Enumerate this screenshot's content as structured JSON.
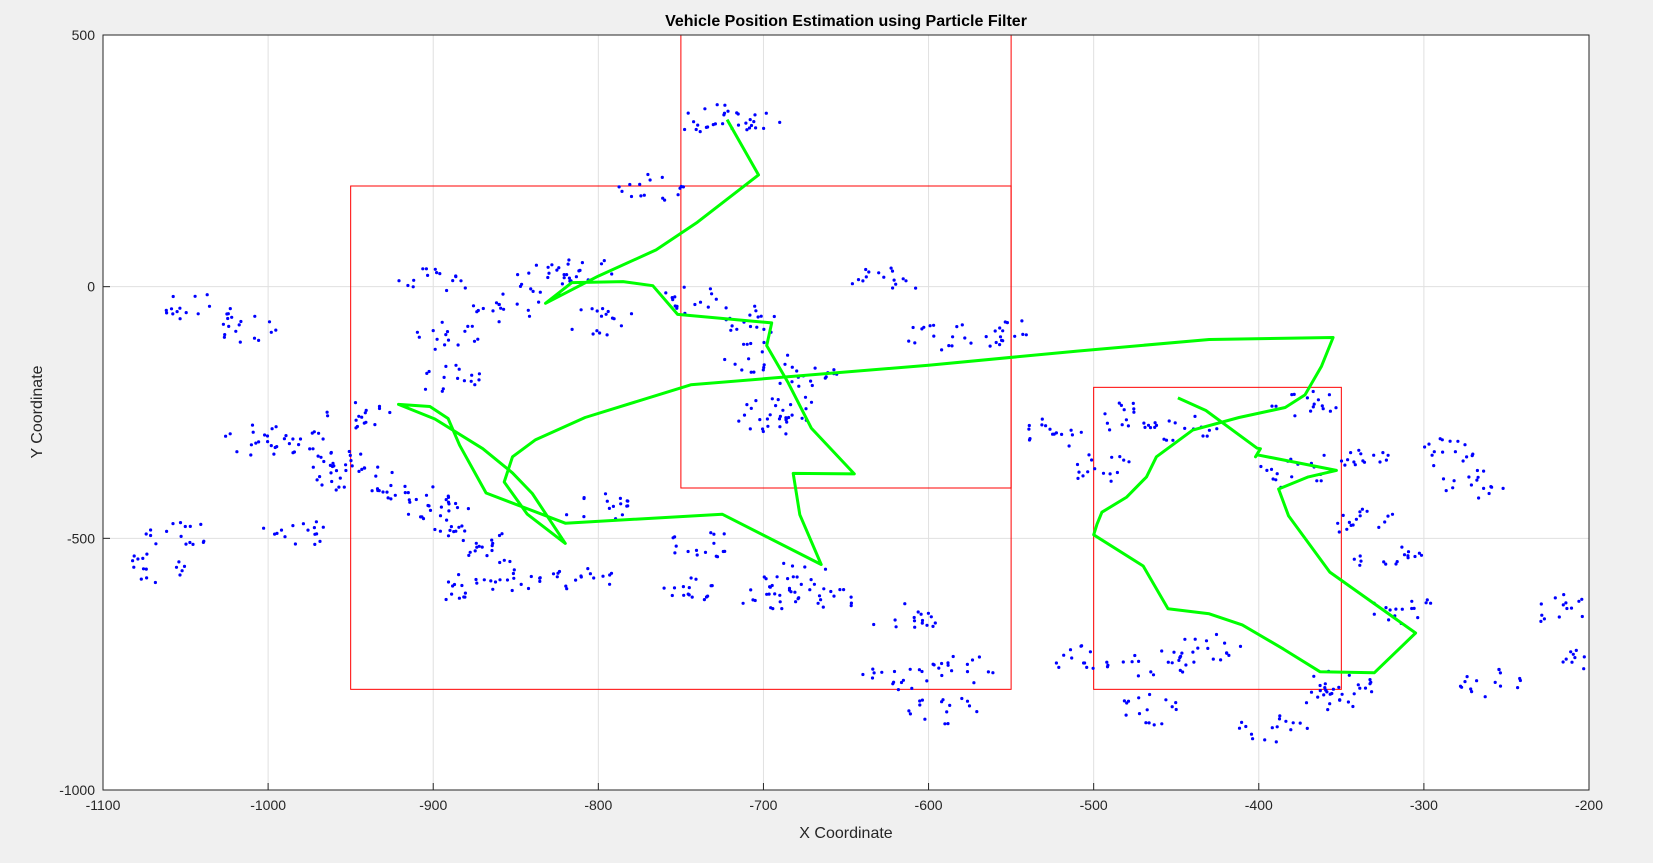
{
  "chart_data": {
    "type": "scatter",
    "title": "Vehicle Position Estimation using Particle Filter",
    "xlabel": "X Coordinate",
    "ylabel": "Y Coordinate",
    "xlim": [
      -1100,
      -200
    ],
    "ylim": [
      -1000,
      500
    ],
    "xticks": [
      -1100,
      -1000,
      -900,
      -800,
      -700,
      -600,
      -500,
      -400,
      -300,
      -200
    ],
    "yticks": [
      -1000,
      -500,
      0,
      500
    ],
    "xtick_labels": [
      "-1100",
      "-1000",
      "-900",
      "-800",
      "-700",
      "-600",
      "-500",
      "-400",
      "-300",
      "-200"
    ],
    "ytick_labels": [
      "-1000",
      "-500",
      "0",
      "500"
    ],
    "grid": true,
    "colors": {
      "obstacles": "#ff0000",
      "particles": "#0000ff",
      "path": "#00ff00",
      "grid": "#e0e0e0",
      "axes_bg": "#ffffff",
      "figure_bg": "#f0f0f0"
    },
    "obstacles": [
      {
        "x": [
          -950,
          -550
        ],
        "y": [
          -800,
          200
        ]
      },
      {
        "x": [
          -750,
          -550
        ],
        "y": [
          -400,
          500
        ]
      },
      {
        "x": [
          -500,
          -350
        ],
        "y": [
          -800,
          -200
        ]
      }
    ],
    "estimated_path": {
      "x": [
        -722,
        -703,
        -740,
        -765,
        -800,
        -832,
        -816,
        -785,
        -767,
        -752,
        -695,
        -698,
        -685,
        -671,
        -645,
        -682,
        -678,
        -665,
        -725,
        -820,
        -868,
        -884,
        -891,
        -902,
        -921,
        -899,
        -870,
        -852,
        -840,
        -820,
        -843,
        -857,
        -852,
        -838,
        -808,
        -744,
        -600,
        -510,
        -430,
        -355,
        -362,
        -372,
        -384,
        -412,
        -440,
        -462,
        -468,
        -480,
        -495,
        -498,
        -500,
        -470,
        -455,
        -430,
        -410,
        -385,
        -363,
        -330,
        -305,
        -357,
        -382,
        -388,
        -370,
        -353,
        -401,
        -402,
        -399,
        -401,
        -432,
        -449
      ],
      "y": [
        332,
        222,
        128,
        73,
        21,
        -33,
        8,
        10,
        2,
        -55,
        -72,
        -117,
        -191,
        -281,
        -372,
        -371,
        -453,
        -552,
        -452,
        -470,
        -410,
        -315,
        -262,
        -238,
        -234,
        -263,
        -322,
        -370,
        -411,
        -510,
        -452,
        -388,
        -338,
        -304,
        -260,
        -195,
        -156,
        -128,
        -105,
        -101,
        -158,
        -215,
        -240,
        -260,
        -285,
        -338,
        -378,
        -418,
        -448,
        -472,
        -493,
        -555,
        -640,
        -650,
        -672,
        -720,
        -765,
        -767,
        -688,
        -567,
        -455,
        -402,
        -378,
        -365,
        -334,
        -338,
        -322,
        -321,
        -246,
        -221
      ]
    },
    "particles": {
      "cluster_centers": [
        [
          -733,
          335
        ],
        [
          -705,
          330
        ],
        [
          -766,
          196
        ],
        [
          -830,
          16
        ],
        [
          -810,
          30
        ],
        [
          -797,
          -70
        ],
        [
          -742,
          -30
        ],
        [
          -703,
          -140
        ],
        [
          -705,
          -66
        ],
        [
          -692,
          -238
        ],
        [
          -675,
          -170
        ],
        [
          -694,
          -270
        ],
        [
          -625,
          10
        ],
        [
          -593,
          -97
        ],
        [
          -556,
          -90
        ],
        [
          -521,
          -290
        ],
        [
          -496,
          -360
        ],
        [
          -480,
          -260
        ],
        [
          -447,
          -280
        ],
        [
          -380,
          -370
        ],
        [
          -371,
          -230
        ],
        [
          -340,
          -330
        ],
        [
          -334,
          -470
        ],
        [
          -322,
          -540
        ],
        [
          -313,
          -640
        ],
        [
          -284,
          -330
        ],
        [
          -270,
          -390
        ],
        [
          -218,
          -640
        ],
        [
          -198,
          -730
        ],
        [
          -260,
          -790
        ],
        [
          -349,
          -790
        ],
        [
          -431,
          -720
        ],
        [
          -460,
          -752
        ],
        [
          -503,
          -740
        ],
        [
          -580,
          -760
        ],
        [
          -614,
          -660
        ],
        [
          -664,
          -620
        ],
        [
          -681,
          -575
        ],
        [
          -750,
          -600
        ],
        [
          -812,
          -580
        ],
        [
          -854,
          -574
        ],
        [
          -877,
          -600
        ],
        [
          -873,
          -510
        ],
        [
          -891,
          -460
        ],
        [
          -903,
          -430
        ],
        [
          -920,
          -397
        ],
        [
          -958,
          -380
        ],
        [
          -954,
          -355
        ],
        [
          -985,
          -310
        ],
        [
          -1006,
          -305
        ],
        [
          -1016,
          -80
        ],
        [
          -944,
          -260
        ],
        [
          -892,
          -180
        ],
        [
          -890,
          -100
        ],
        [
          -857,
          -40
        ],
        [
          -900,
          10
        ],
        [
          -1042,
          -40
        ],
        [
          -1055,
          -490
        ],
        [
          -1071,
          -560
        ],
        [
          -982,
          -490
        ],
        [
          -800,
          -440
        ],
        [
          -738,
          -510
        ],
        [
          -696,
          -620
        ],
        [
          -621,
          -780
        ],
        [
          -590,
          -840
        ],
        [
          -465,
          -840
        ],
        [
          -390,
          -875
        ],
        [
          -355,
          -810
        ]
      ],
      "count": 1040
    }
  }
}
